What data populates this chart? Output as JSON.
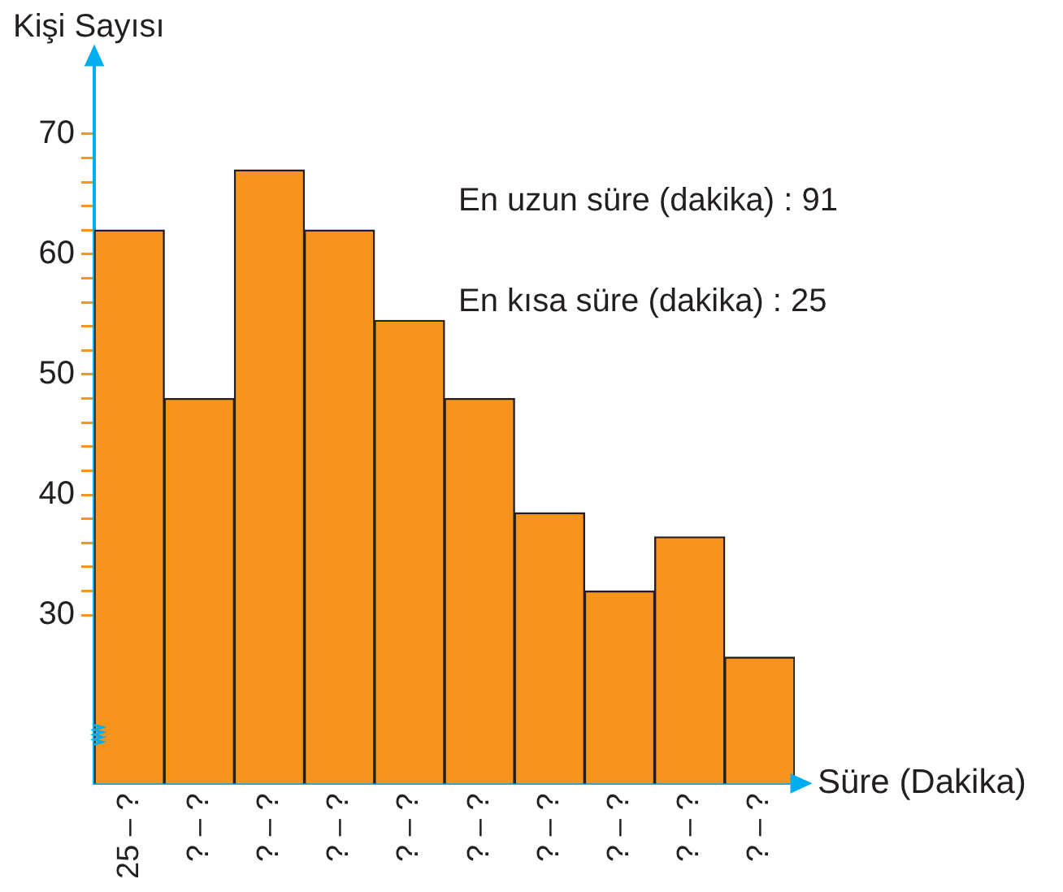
{
  "chart_data": {
    "type": "bar",
    "ylabel": "Kişi Sayısı",
    "xlabel": "Süre (Dakika)",
    "categories": [
      "25 – ?",
      "? – ?",
      "? – ?",
      "? – ?",
      "? – ?",
      "? – ?",
      "? – ?",
      "? – ?",
      "? – ?",
      "? – ?"
    ],
    "values": [
      62,
      48,
      67,
      62,
      54.5,
      48,
      38.5,
      32,
      36.5,
      26.5
    ],
    "color": "#f7941d",
    "ylim": [
      16,
      76
    ],
    "yticks": [
      30,
      {
        "value": 32,
        "label": null
      },
      {
        "value": 34,
        "label": null
      },
      {
        "value": 36,
        "label": null
      },
      {
        "value": 38,
        "label": null
      },
      40,
      {
        "value": 42,
        "label": null
      },
      {
        "value": 44,
        "label": null
      },
      {
        "value": 46,
        "label": null
      },
      {
        "value": 48,
        "label": null
      },
      50,
      {
        "value": 52,
        "label": null
      },
      {
        "value": 54,
        "label": null
      },
      {
        "value": 56,
        "label": null
      },
      {
        "value": 58,
        "label": null
      },
      60,
      {
        "value": 62,
        "label": null
      },
      {
        "value": 64,
        "label": null
      },
      {
        "value": 66,
        "label": null
      },
      {
        "value": 68,
        "label": null
      },
      70
    ],
    "annotations": [
      "En uzun süre (dakika) : 91",
      "En kısa süre (dakika) : 25"
    ],
    "grid": false,
    "legend": false
  }
}
